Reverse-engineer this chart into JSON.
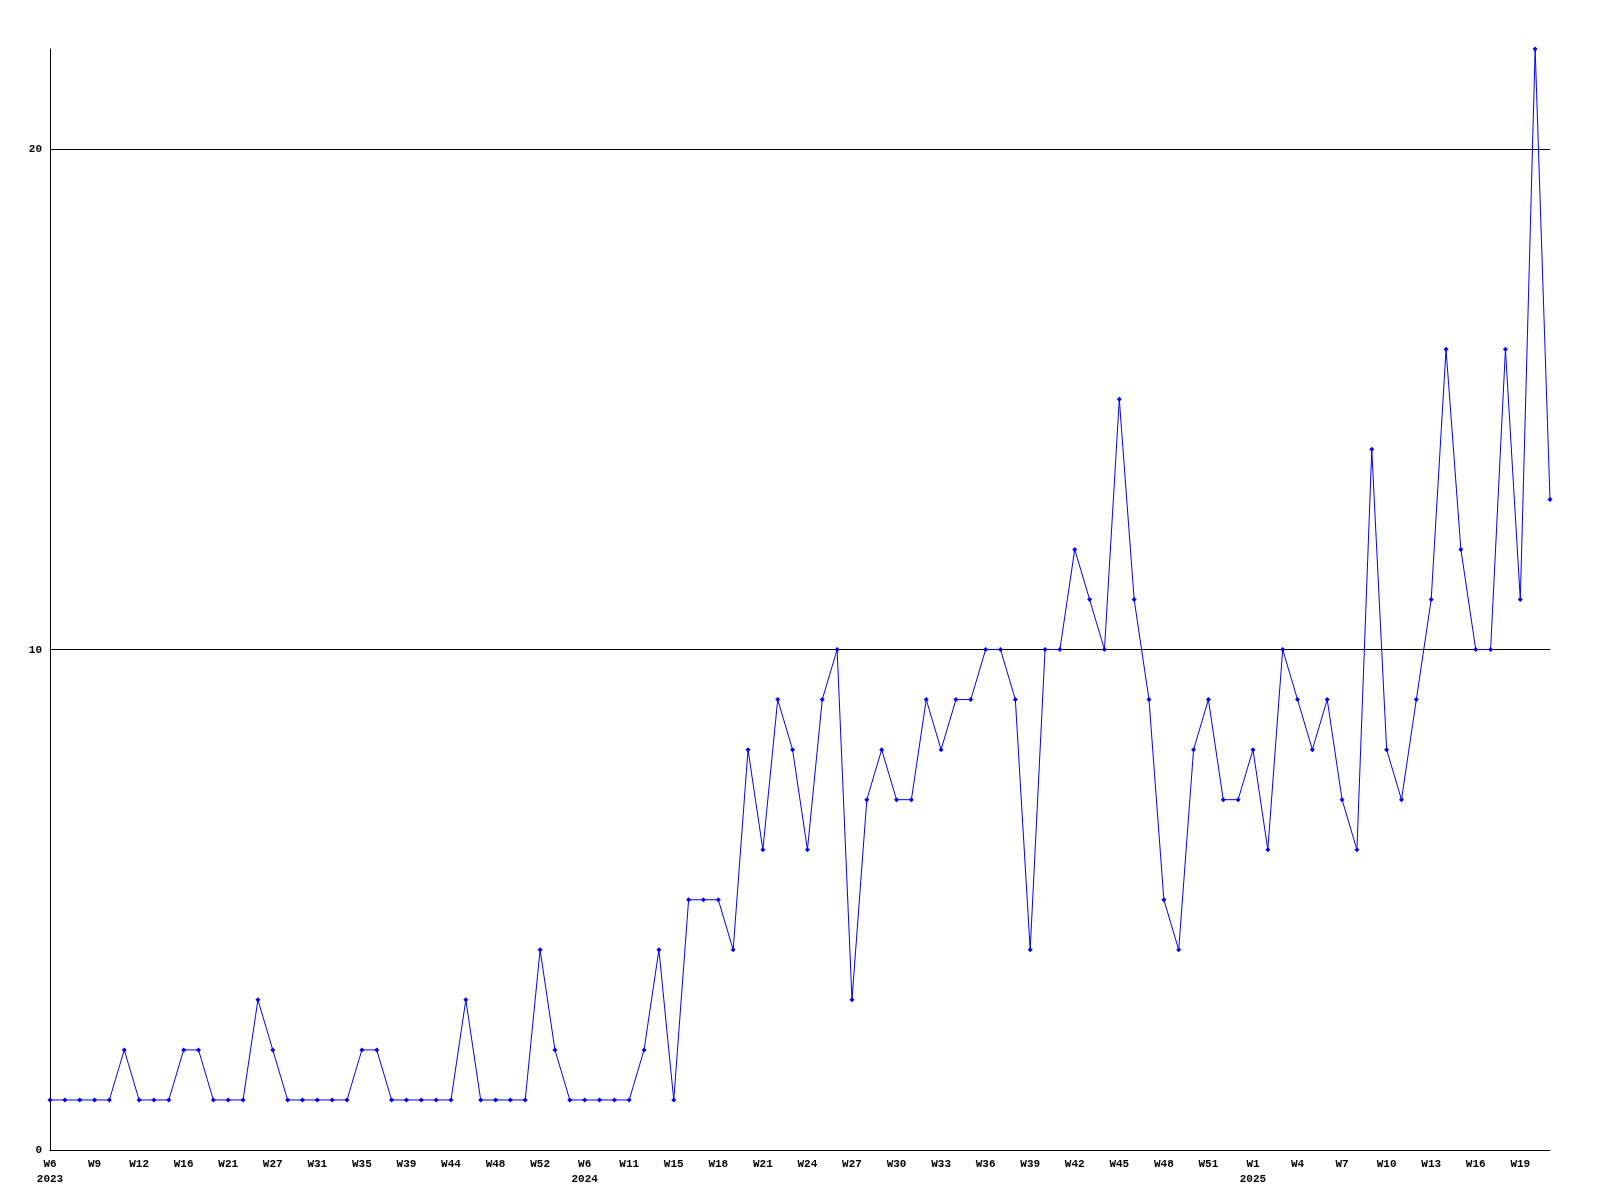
{
  "chart_data": {
    "type": "line",
    "categories": [
      "W6\n2023",
      null,
      null,
      "W9",
      null,
      null,
      "W12",
      null,
      null,
      "W16",
      null,
      null,
      "W21",
      null,
      null,
      "W27",
      null,
      null,
      "W31",
      null,
      null,
      "W35",
      null,
      null,
      "W39",
      null,
      null,
      "W44",
      null,
      null,
      "W48",
      null,
      null,
      "W52",
      null,
      null,
      "W6\n2024",
      null,
      null,
      "W11",
      null,
      null,
      "W15",
      null,
      null,
      "W18",
      null,
      null,
      "W21",
      null,
      null,
      "W24",
      null,
      null,
      "W27",
      null,
      null,
      "W30",
      null,
      null,
      "W33",
      null,
      null,
      "W36",
      null,
      null,
      "W39",
      null,
      null,
      "W42",
      null,
      null,
      "W45",
      null,
      null,
      "W48",
      null,
      null,
      "W51",
      null,
      null,
      "W1\n2025",
      null,
      null,
      "W4",
      null,
      null,
      "W7",
      null,
      null,
      "W10",
      null,
      null,
      "W13",
      null,
      null,
      "W16",
      null,
      null,
      "W19",
      null,
      null
    ],
    "series": [
      {
        "color": "#0000ff",
        "values": [
          1,
          1,
          1,
          1,
          1,
          2,
          1,
          1,
          1,
          2,
          2,
          1,
          1,
          1,
          3,
          2,
          1,
          1,
          1,
          1,
          1,
          2,
          2,
          1,
          1,
          1,
          1,
          1,
          3,
          1,
          1,
          1,
          1,
          4,
          2,
          1,
          1,
          1,
          1,
          1,
          2,
          4,
          1,
          5,
          5,
          5,
          4,
          8,
          6,
          9,
          8,
          6,
          9,
          10,
          3,
          7,
          8,
          7,
          7,
          9,
          8,
          9,
          9,
          10,
          10,
          9,
          4,
          10,
          10,
          12,
          11,
          10,
          15,
          11,
          9,
          5,
          4,
          8,
          9,
          7,
          7,
          8,
          6,
          10,
          9,
          8,
          9,
          7,
          6,
          14,
          8,
          7,
          9,
          11,
          16,
          12,
          10,
          10,
          16,
          11,
          22,
          13
        ]
      }
    ],
    "ylim": [
      0,
      22
    ],
    "yticks": [
      0,
      10,
      20
    ],
    "grid": "y",
    "marker": "diamond",
    "line_style": "solid"
  }
}
